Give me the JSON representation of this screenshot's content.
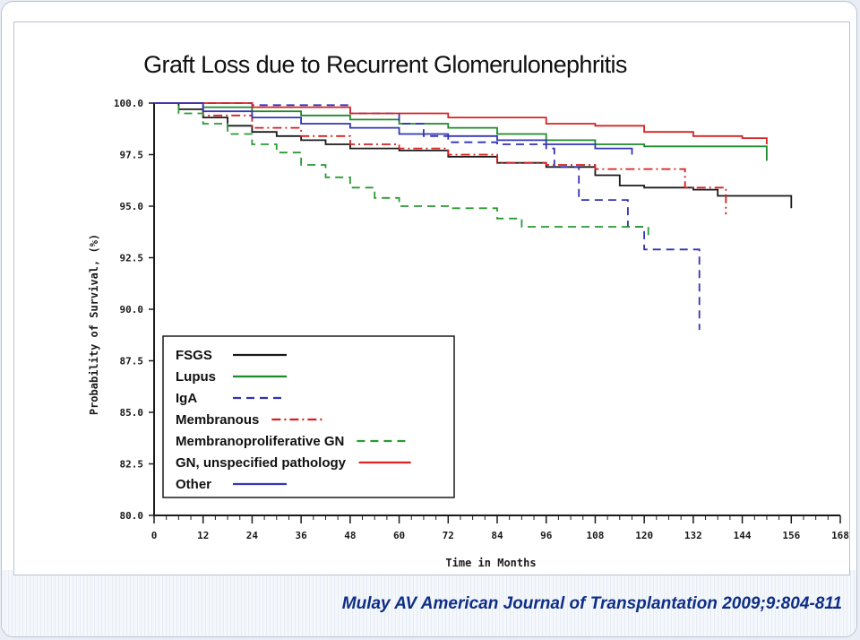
{
  "citation": "Mulay AV American Journal of Transplantation 2009;9:804-811",
  "chart_data": {
    "type": "line",
    "step": true,
    "title": "Graft Loss due to Recurrent Glomerulonephritis",
    "xlabel": "Time in Months",
    "ylabel": "Probability of Survival, (%)",
    "xlim": [
      0,
      168
    ],
    "ylim": [
      80,
      100
    ],
    "x_ticks": [
      "0",
      "12",
      "24",
      "36",
      "48",
      "60",
      "72",
      "84",
      "96",
      "108",
      "120",
      "132",
      "144",
      "156",
      "168"
    ],
    "y_ticks": [
      "100.0",
      "97.5",
      "95.0",
      "92.5",
      "90.0",
      "87.5",
      "85.0",
      "82.5",
      "80.0"
    ],
    "grid": false,
    "legend_position": "bottom-left",
    "series": [
      {
        "name": "FSGS",
        "color": "#1a1a1a",
        "dash": "",
        "points": [
          [
            0,
            100
          ],
          [
            6,
            99.7
          ],
          [
            12,
            99.3
          ],
          [
            18,
            98.9
          ],
          [
            24,
            98.6
          ],
          [
            30,
            98.4
          ],
          [
            36,
            98.2
          ],
          [
            42,
            98.0
          ],
          [
            48,
            97.8
          ],
          [
            60,
            97.7
          ],
          [
            72,
            97.4
          ],
          [
            84,
            97.1
          ],
          [
            96,
            96.9
          ],
          [
            108,
            96.5
          ],
          [
            114,
            96.0
          ],
          [
            120,
            95.9
          ],
          [
            132,
            95.8
          ],
          [
            138,
            95.5
          ],
          [
            156,
            95.5
          ],
          [
            156,
            94.9
          ]
        ]
      },
      {
        "name": "Lupus",
        "color": "#1e8a2a",
        "dash": "",
        "points": [
          [
            0,
            100
          ],
          [
            12,
            99.8
          ],
          [
            24,
            99.6
          ],
          [
            36,
            99.4
          ],
          [
            48,
            99.2
          ],
          [
            60,
            99.0
          ],
          [
            72,
            98.8
          ],
          [
            84,
            98.5
          ],
          [
            96,
            98.2
          ],
          [
            108,
            98.0
          ],
          [
            120,
            97.9
          ],
          [
            150,
            97.9
          ],
          [
            150,
            97.2
          ]
        ]
      },
      {
        "name": "IgA",
        "color": "#3232b4",
        "dash": "9,6",
        "points": [
          [
            0,
            100
          ],
          [
            24,
            99.9
          ],
          [
            48,
            99.5
          ],
          [
            60,
            99.0
          ],
          [
            66,
            98.4
          ],
          [
            72,
            98.1
          ],
          [
            84,
            98.0
          ],
          [
            96,
            97.8
          ],
          [
            98,
            96.9
          ],
          [
            104,
            96.9
          ],
          [
            104,
            95.3
          ],
          [
            116,
            95.3
          ],
          [
            116,
            94.0
          ],
          [
            120,
            92.9
          ],
          [
            132,
            92.9
          ],
          [
            133.5,
            92.9
          ],
          [
            133.5,
            89.0
          ]
        ]
      },
      {
        "name": "Membranous",
        "color": "#d42020",
        "dash": "10,4,2,4",
        "points": [
          [
            0,
            100
          ],
          [
            12,
            99.4
          ],
          [
            24,
            98.8
          ],
          [
            36,
            98.4
          ],
          [
            48,
            98.0
          ],
          [
            60,
            97.8
          ],
          [
            72,
            97.5
          ],
          [
            84,
            97.1
          ],
          [
            96,
            97.0
          ],
          [
            108,
            96.8
          ],
          [
            120,
            96.8
          ],
          [
            130,
            96.8
          ],
          [
            130,
            95.9
          ],
          [
            138,
            95.9
          ],
          [
            140,
            95.7
          ],
          [
            140,
            94.6
          ]
        ]
      },
      {
        "name": "Membranoproliferative GN",
        "color": "#2a9a34",
        "dash": "9,6",
        "points": [
          [
            0,
            100
          ],
          [
            6,
            99.5
          ],
          [
            12,
            99.0
          ],
          [
            18,
            98.5
          ],
          [
            24,
            98.0
          ],
          [
            30,
            97.6
          ],
          [
            36,
            97.0
          ],
          [
            42,
            96.4
          ],
          [
            48,
            95.9
          ],
          [
            54,
            95.4
          ],
          [
            60,
            95.0
          ],
          [
            72,
            94.9
          ],
          [
            84,
            94.4
          ],
          [
            90,
            94.0
          ],
          [
            96,
            94.0
          ],
          [
            108,
            94.0
          ],
          [
            120,
            94.0
          ],
          [
            121,
            94.0
          ],
          [
            121,
            93.5
          ]
        ]
      },
      {
        "name": "GN, unspecified pathology",
        "color": "#d42424",
        "dash": "",
        "points": [
          [
            0,
            100
          ],
          [
            24,
            99.8
          ],
          [
            48,
            99.5
          ],
          [
            72,
            99.3
          ],
          [
            96,
            99.0
          ],
          [
            108,
            98.9
          ],
          [
            120,
            98.6
          ],
          [
            132,
            98.4
          ],
          [
            144,
            98.3
          ],
          [
            150,
            98.3
          ],
          [
            150,
            98.0
          ]
        ]
      },
      {
        "name": "Other",
        "color": "#3436b6",
        "dash": "",
        "points": [
          [
            0,
            100
          ],
          [
            12,
            99.6
          ],
          [
            24,
            99.3
          ],
          [
            36,
            99.0
          ],
          [
            48,
            98.8
          ],
          [
            60,
            98.5
          ],
          [
            72,
            98.4
          ],
          [
            84,
            98.2
          ],
          [
            96,
            98.0
          ],
          [
            108,
            97.8
          ],
          [
            117,
            97.8
          ],
          [
            117,
            97.5
          ]
        ]
      }
    ]
  }
}
